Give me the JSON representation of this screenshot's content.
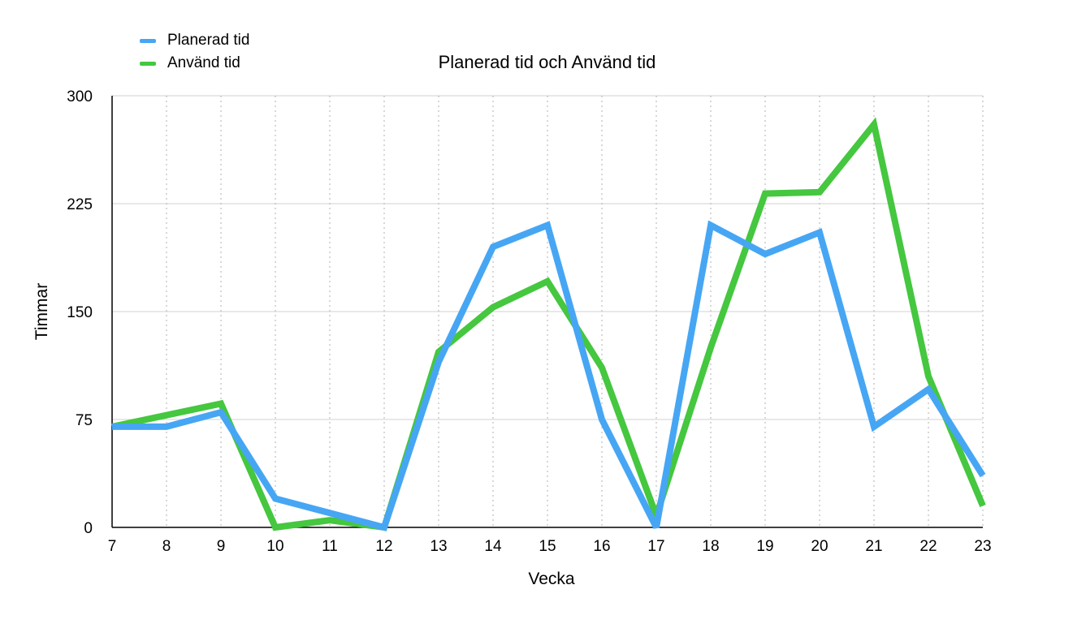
{
  "chart_data": {
    "type": "line",
    "title": "Planerad tid och Använd tid",
    "xlabel": "Vecka",
    "ylabel": "Timmar",
    "x": [
      7,
      8,
      9,
      10,
      11,
      12,
      13,
      14,
      15,
      16,
      17,
      18,
      19,
      20,
      21,
      22,
      23
    ],
    "ylim": [
      0,
      300
    ],
    "yticks": [
      0,
      75,
      150,
      225,
      300
    ],
    "grid": true,
    "legend_position": "top-left",
    "series": [
      {
        "name": "Planerad tid",
        "color": "#46a6f4",
        "values": [
          70,
          70,
          80,
          20,
          10,
          0,
          115,
          195,
          210,
          75,
          0,
          210,
          190,
          205,
          70,
          96,
          36
        ]
      },
      {
        "name": "Använd tid",
        "color": "#45c73f",
        "values": [
          70,
          78,
          86,
          0,
          5,
          0,
          122,
          153,
          171,
          111,
          8,
          125,
          232,
          233,
          280,
          105,
          15
        ]
      }
    ]
  }
}
